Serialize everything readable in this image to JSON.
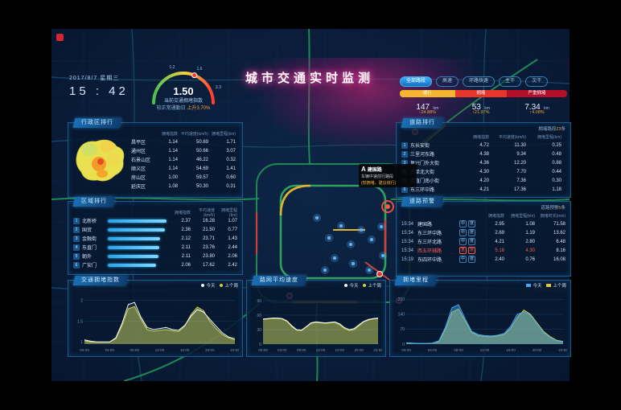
{
  "header": {
    "date": "2017/8/7 星期三",
    "time": "15 : 42",
    "title": "城市交通实时监测"
  },
  "gauge": {
    "value": "1.50",
    "caption": "当前交通拥堵指数",
    "compare_label": "较正常通勤日",
    "compare_value": "上升3.70%",
    "ticks": [
      "1.2",
      "1.6",
      "2.3"
    ]
  },
  "road_filters": [
    {
      "label": "全部路段",
      "active": true
    },
    {
      "label": "高速"
    },
    {
      "label": "环路快速"
    },
    {
      "label": "主干"
    },
    {
      "label": "次干"
    }
  ],
  "congestion_bar": [
    {
      "label": "缓行",
      "value": "147",
      "unit": "km",
      "percent": "↑24.88%",
      "color": "#f5b52e",
      "width": "33%"
    },
    {
      "label": "拥堵",
      "value": "53",
      "unit": "km",
      "percent": "↑21.97%",
      "color": "#e8352b",
      "width": "31%"
    },
    {
      "label": "严重拥堵",
      "value": "7.34",
      "unit": "km",
      "percent": "↑4.08%",
      "color": "#b40f28",
      "width": "36%"
    }
  ],
  "district_panel": {
    "title": "行政区排行",
    "columns": [
      "拥堵指数",
      "平均速度(km/h)",
      "拥堵里程(km)"
    ],
    "rows": [
      {
        "name": "昌平区",
        "index": "1.14",
        "speed": "50.69",
        "mileage": "1.71"
      },
      {
        "name": "通州区",
        "index": "1.14",
        "speed": "50.66",
        "mileage": "3.07"
      },
      {
        "name": "石景山区",
        "index": "1.14",
        "speed": "46.22",
        "mileage": "0.32"
      },
      {
        "name": "顺义区",
        "index": "1.14",
        "speed": "54.69",
        "mileage": "1.41"
      },
      {
        "name": "房山区",
        "index": "1.00",
        "speed": "59.57",
        "mileage": "0.60"
      },
      {
        "name": "延庆区",
        "index": "1.08",
        "speed": "50.30",
        "mileage": "0.31"
      }
    ]
  },
  "area_panel": {
    "title": "区域排行",
    "columns": [
      "拥堵指数",
      "平均速度(km/h)",
      "拥堵里程(km)"
    ],
    "rows": [
      {
        "rank": "1",
        "name": "北新桥",
        "bar": "100%",
        "index": "2.37",
        "speed": "16.28",
        "mileage": "1.07"
      },
      {
        "rank": "2",
        "name": "国贸",
        "bar": "97%",
        "index": "2.36",
        "speed": "21.50",
        "mileage": "0.77"
      },
      {
        "rank": "3",
        "name": "金融街",
        "bar": "89%",
        "index": "2.12",
        "speed": "23.71",
        "mileage": "1.43"
      },
      {
        "rank": "4",
        "name": "东直门",
        "bar": "87%",
        "index": "2.11",
        "speed": "23.76",
        "mileage": "2.44"
      },
      {
        "rank": "5",
        "name": "朝外",
        "bar": "86%",
        "index": "2.11",
        "speed": "23.80",
        "mileage": "2.06"
      },
      {
        "rank": "6",
        "name": "广安门",
        "bar": "82%",
        "index": "2.06",
        "speed": "17.62",
        "mileage": "2.42"
      }
    ]
  },
  "road_panel": {
    "title": "道路排行",
    "note_prefix": "拥堵路段",
    "note_count": "23",
    "note_suffix": "条",
    "columns": [
      "拥堵指数",
      "平均速度(km/h)",
      "拥堵里程(km)"
    ],
    "rows": [
      {
        "rank": "1",
        "name": "东长安街",
        "index": "4.72",
        "speed": "11.30",
        "mileage": "0.25"
      },
      {
        "rank": "2",
        "name": "三里河东路",
        "index": "4.38",
        "speed": "9.34",
        "mileage": "0.48"
      },
      {
        "rank": "3",
        "name": "复兴门外大街",
        "index": "4.36",
        "speed": "12.20",
        "mileage": "0.88"
      },
      {
        "rank": "4",
        "name": "西单北大街",
        "index": "4.30",
        "speed": "7.70",
        "mileage": "0.44"
      },
      {
        "rank": "5",
        "name": "西直门南小街",
        "index": "4.20",
        "speed": "7.36",
        "mileage": "0.30"
      },
      {
        "rank": "6",
        "name": "东三环中路",
        "index": "4.21",
        "speed": "17.36",
        "mileage": "1.18"
      }
    ]
  },
  "alert_panel": {
    "title": "道路预警",
    "note_prefix": "道路预警",
    "note_count": "5",
    "note_suffix": "条",
    "columns": [
      "拥堵指数",
      "拥堵里程(km)",
      "拥堵时长(min)"
    ],
    "rows": [
      {
        "time": "15:34",
        "name": "建国路",
        "tag1": "中",
        "tag2": "度",
        "index": "2.95",
        "mileage": "1.08",
        "duration": "71.58"
      },
      {
        "time": "15:34",
        "name": "东三环中路",
        "tag1": "中",
        "tag2": "度",
        "index": "2.69",
        "mileage": "1.19",
        "duration": "13.62"
      },
      {
        "time": "15:34",
        "name": "东三环北路",
        "tag1": "中",
        "tag2": "度",
        "index": "4.21",
        "mileage": "2.80",
        "duration": "6.48"
      },
      {
        "time": "15:34",
        "name": "西五环辅路",
        "tag1": "重",
        "tag2": "度",
        "index": "5.16",
        "mileage": "4.30",
        "duration": "8.16",
        "severe": true
      },
      {
        "time": "15:19",
        "name": "东四环中路",
        "tag1": "中",
        "tag2": "度",
        "index": "2.40",
        "mileage": "0.76",
        "duration": "16.08"
      }
    ]
  },
  "map_tooltip": {
    "marker": "A",
    "name": "建国路",
    "desc": "车辆中速前行路段",
    "note": "(较拥堵，建议绕行)"
  },
  "chart_data": [
    {
      "type": "area",
      "title": "交通拥堵指数",
      "xticks": [
        "00:00",
        "04:00",
        "08:00",
        "12:00",
        "16:00",
        "20:00",
        "23:59"
      ],
      "yticks": [
        1,
        1.5,
        2
      ],
      "ylim": [
        0.95,
        2.05
      ],
      "legend_position": "top-right",
      "series": [
        {
          "name": "今天",
          "color": "#f0f6ff",
          "fill": "rgba(240,246,255,0.10)",
          "values": [
            1.05,
            1.02,
            1.0,
            1.0,
            1.0,
            1.1,
            1.45,
            1.9,
            1.95,
            1.6,
            1.35,
            1.3,
            1.32,
            1.35,
            1.3,
            1.28,
            1.4,
            1.62,
            1.78,
            1.72,
            1.55,
            1.38,
            1.22,
            1.12,
            1.08
          ]
        },
        {
          "name": "上个周",
          "color": "#c9d23f",
          "fill": "rgba(201,210,63,0.45)",
          "values": [
            1.03,
            1.0,
            1.0,
            1.0,
            1.0,
            1.08,
            1.4,
            1.8,
            1.85,
            1.55,
            1.3,
            1.26,
            1.28,
            1.3,
            1.27,
            1.25,
            1.38,
            1.66,
            1.84,
            1.75,
            1.5,
            1.32,
            1.18,
            1.1,
            1.05
          ]
        }
      ]
    },
    {
      "type": "area",
      "title": "路网平均速度",
      "xticks": [
        "00:00",
        "04:00",
        "08:00",
        "12:00",
        "16:00",
        "20:00",
        "23:59"
      ],
      "yticks": [
        0,
        30,
        60,
        90
      ],
      "ylim": [
        0,
        95
      ],
      "legend_position": "top-right",
      "series": [
        {
          "name": "今天",
          "color": "#f0f6ff",
          "fill": "rgba(240,246,255,0.10)",
          "values": [
            52,
            53,
            54,
            54,
            53,
            48,
            38,
            30,
            29,
            36,
            44,
            46,
            45,
            44,
            45,
            46,
            42,
            34,
            30,
            32,
            40,
            47,
            51,
            53,
            54
          ]
        },
        {
          "name": "上个周",
          "color": "#c9d23f",
          "fill": "rgba(201,210,63,0.45)",
          "values": [
            51,
            52,
            53,
            53,
            52,
            47,
            36,
            29,
            28,
            35,
            43,
            45,
            44,
            43,
            44,
            45,
            40,
            32,
            28,
            30,
            38,
            46,
            50,
            52,
            53
          ]
        }
      ]
    },
    {
      "type": "area",
      "title": "拥堵里程",
      "xticks": [
        "00:00",
        "04:00",
        "08:00",
        "12:00",
        "16:00",
        "20:00",
        "23:59"
      ],
      "yticks": [
        0,
        70,
        140,
        210
      ],
      "ylim": [
        0,
        215
      ],
      "legend_position": "top-right",
      "series": [
        {
          "name": "今天",
          "color": "#3fa9f5",
          "fill": "rgba(63,169,245,0.45)",
          "values": [
            6,
            4,
            3,
            3,
            5,
            15,
            80,
            170,
            185,
            120,
            60,
            45,
            40,
            38,
            42,
            50,
            85,
            140,
            150,
            135,
            95,
            55,
            30,
            15,
            10
          ]
        },
        {
          "name": "上个周",
          "color": "#d9c83a",
          "fill": "rgba(217,200,58,0.55)",
          "values": [
            5,
            4,
            3,
            3,
            4,
            12,
            70,
            150,
            165,
            110,
            55,
            40,
            36,
            34,
            38,
            45,
            75,
            125,
            160,
            140,
            100,
            60,
            35,
            18,
            12
          ]
        }
      ]
    }
  ]
}
